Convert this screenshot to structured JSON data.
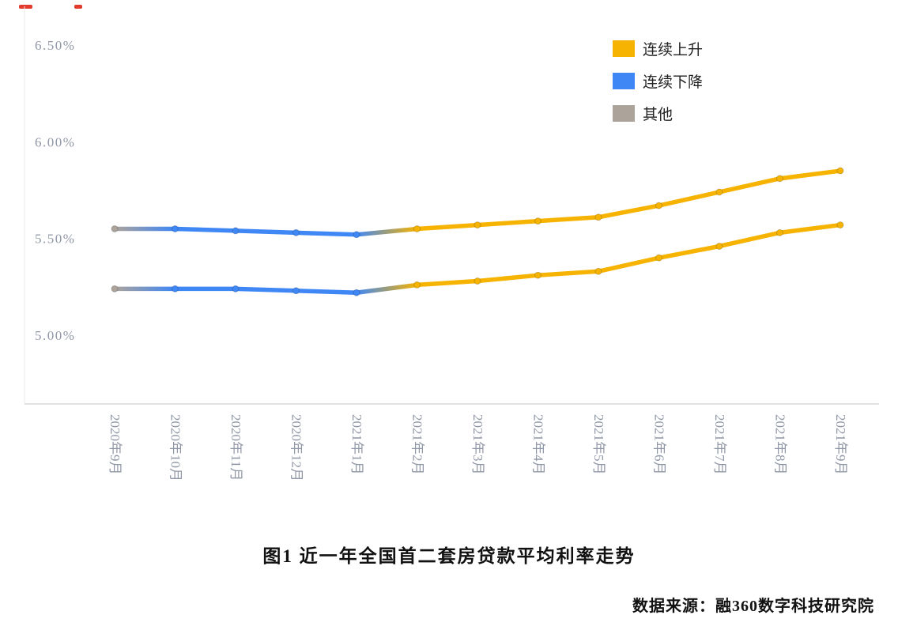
{
  "chart_data": {
    "type": "line",
    "title": "图1 近一年全国首二套房贷款平均利率走势",
    "source_label": "数据来源：融360数字科技研究院",
    "x_categories": [
      "2020年9月",
      "2020年10月",
      "2020年11月",
      "2020年12月",
      "2021年1月",
      "2021年2月",
      "2021年3月",
      "2021年4月",
      "2021年5月",
      "2021年6月",
      "2021年7月",
      "2021年8月",
      "2021年9月"
    ],
    "y_tick_labels": [
      "6.50%",
      "6.00%",
      "5.50%",
      "5.00%"
    ],
    "ylim": [
      4.85,
      6.62
    ],
    "grid": false,
    "legend_position": "top-right",
    "legend": [
      {
        "label": "连续上升",
        "key": "up",
        "color": "#F6B301"
      },
      {
        "label": "连续下降",
        "key": "down",
        "color": "#3F87F5"
      },
      {
        "label": "其他",
        "key": "other",
        "color": "#ACA39B"
      }
    ],
    "series": [
      {
        "values": [
          5.55,
          5.55,
          5.54,
          5.53,
          5.52,
          5.55,
          5.57,
          5.59,
          5.61,
          5.67,
          5.74,
          5.81,
          5.85
        ],
        "phases": [
          "other",
          "down",
          "down",
          "down",
          "down",
          "up",
          "up",
          "up",
          "up",
          "up",
          "up",
          "up",
          "up"
        ]
      },
      {
        "values": [
          5.24,
          5.24,
          5.24,
          5.23,
          5.22,
          5.26,
          5.28,
          5.31,
          5.33,
          5.4,
          5.46,
          5.53,
          5.57
        ],
        "phases": [
          "other",
          "down",
          "down",
          "down",
          "down",
          "up",
          "up",
          "up",
          "up",
          "up",
          "up",
          "up",
          "up"
        ]
      }
    ],
    "axis_label_color": "#9097A6",
    "axis_line_color": "#D9D9D9"
  },
  "artifacts": {
    "color": "#E23B2E"
  }
}
